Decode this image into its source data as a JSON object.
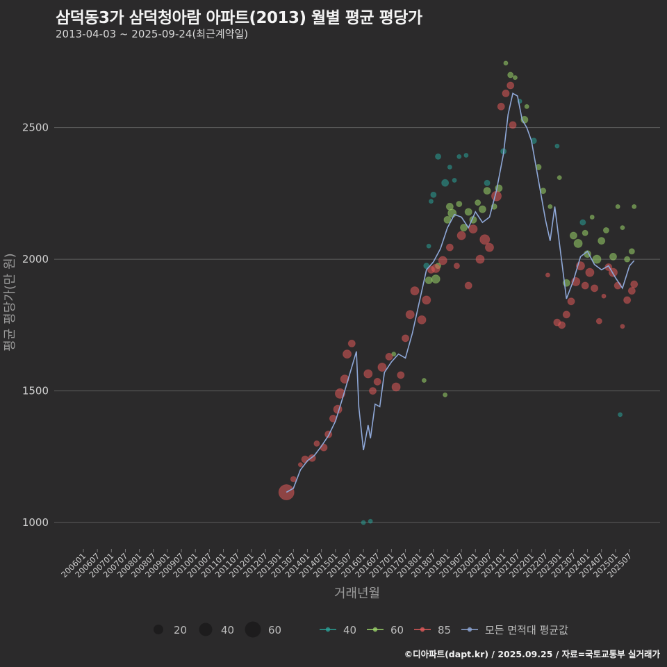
{
  "header": {
    "title": "삼덕동3가 삼덕청아람 아파트(2013) 월별 평균 평당가",
    "subtitle": "2013-04-03 ~ 2025-09-24(최근계약일)"
  },
  "footer": {
    "credit": "©디아파트(dapt.kr) / 2025.09.25 / 자료=국토교통부 실거래가"
  },
  "colors": {
    "background": "#2b2a2b",
    "grid": "#5d5d5d",
    "area_40": "#2aa198",
    "area_60": "#9bd36a",
    "area_85": "#e05a5a",
    "average_line": "#8fa8d8"
  },
  "chart_data": {
    "type": "scatter",
    "title": "삼덕동3가 삼덕청아람 아파트(2013) 월별 평균 평당가",
    "xlabel": "거래년월",
    "ylabel": "평균 평당가(만 원)",
    "ylim": [
      900,
      2800
    ],
    "y_ticks": [
      1000,
      1500,
      2000,
      2500
    ],
    "grid": true,
    "x_tick_labels": [
      "200601",
      "200607",
      "200701",
      "200707",
      "200801",
      "200807",
      "200901",
      "200907",
      "201001",
      "201007",
      "201101",
      "201107",
      "201201",
      "201207",
      "201301",
      "201307",
      "201401",
      "201407",
      "201501",
      "201507",
      "201601",
      "201607",
      "201701",
      "201707",
      "201801",
      "201807",
      "201901",
      "201907",
      "202001",
      "202007",
      "202101",
      "202107",
      "202201",
      "202207",
      "202301",
      "202307",
      "202401",
      "202407",
      "202501",
      "202507"
    ],
    "legend": {
      "position": "bottom",
      "size_items": [
        {
          "label": "20",
          "value": 20
        },
        {
          "label": "40",
          "value": 40
        },
        {
          "label": "60",
          "value": 60
        }
      ],
      "series_items": [
        {
          "label": "40",
          "color": "#2aa198"
        },
        {
          "label": "60",
          "color": "#9bd36a"
        },
        {
          "label": "85",
          "color": "#e05a5a"
        },
        {
          "label": "모든 면적대 평균값",
          "color": "#8fa8d8"
        }
      ]
    },
    "series": [
      {
        "name": "40",
        "color": "#2aa198",
        "points": [
          {
            "x": "2016-01",
            "y": 1000,
            "size": 6
          },
          {
            "x": "2016-04",
            "y": 1005,
            "size": 6
          },
          {
            "x": "2018-04",
            "y": 1975,
            "size": 8
          },
          {
            "x": "2018-05",
            "y": 2050,
            "size": 6
          },
          {
            "x": "2018-06",
            "y": 2220,
            "size": 6
          },
          {
            "x": "2018-07",
            "y": 2245,
            "size": 8
          },
          {
            "x": "2018-09",
            "y": 2390,
            "size": 8
          },
          {
            "x": "2018-12",
            "y": 2290,
            "size": 10
          },
          {
            "x": "2019-02",
            "y": 2350,
            "size": 6
          },
          {
            "x": "2019-04",
            "y": 2300,
            "size": 6
          },
          {
            "x": "2019-06",
            "y": 2390,
            "size": 6
          },
          {
            "x": "2019-09",
            "y": 2395,
            "size": 6
          },
          {
            "x": "2020-06",
            "y": 2290,
            "size": 8
          },
          {
            "x": "2021-01",
            "y": 2410,
            "size": 8
          },
          {
            "x": "2021-08",
            "y": 2600,
            "size": 6
          },
          {
            "x": "2022-02",
            "y": 2450,
            "size": 8
          },
          {
            "x": "2022-12",
            "y": 2430,
            "size": 6
          },
          {
            "x": "2023-11",
            "y": 2140,
            "size": 8
          },
          {
            "x": "2025-03",
            "y": 1410,
            "size": 6
          }
        ]
      },
      {
        "name": "60",
        "color": "#9bd36a",
        "points": [
          {
            "x": "2017-02",
            "y": 1640,
            "size": 6
          },
          {
            "x": "2018-03",
            "y": 1540,
            "size": 6
          },
          {
            "x": "2018-05",
            "y": 1920,
            "size": 10
          },
          {
            "x": "2018-08",
            "y": 1925,
            "size": 12
          },
          {
            "x": "2018-09",
            "y": 1975,
            "size": 8
          },
          {
            "x": "2018-12",
            "y": 1485,
            "size": 6
          },
          {
            "x": "2019-01",
            "y": 2150,
            "size": 10
          },
          {
            "x": "2019-02",
            "y": 2200,
            "size": 10
          },
          {
            "x": "2019-03",
            "y": 2175,
            "size": 12
          },
          {
            "x": "2019-06",
            "y": 2210,
            "size": 8
          },
          {
            "x": "2019-08",
            "y": 2120,
            "size": 10
          },
          {
            "x": "2019-10",
            "y": 2180,
            "size": 10
          },
          {
            "x": "2019-12",
            "y": 2150,
            "size": 10
          },
          {
            "x": "2020-02",
            "y": 2215,
            "size": 8
          },
          {
            "x": "2020-04",
            "y": 2190,
            "size": 10
          },
          {
            "x": "2020-06",
            "y": 2260,
            "size": 10
          },
          {
            "x": "2020-09",
            "y": 2200,
            "size": 8
          },
          {
            "x": "2020-11",
            "y": 2270,
            "size": 10
          },
          {
            "x": "2021-02",
            "y": 2745,
            "size": 6
          },
          {
            "x": "2021-04",
            "y": 2700,
            "size": 8
          },
          {
            "x": "2021-06",
            "y": 2690,
            "size": 6
          },
          {
            "x": "2021-10",
            "y": 2530,
            "size": 10
          },
          {
            "x": "2021-11",
            "y": 2580,
            "size": 6
          },
          {
            "x": "2022-04",
            "y": 2350,
            "size": 8
          },
          {
            "x": "2022-06",
            "y": 2260,
            "size": 8
          },
          {
            "x": "2022-09",
            "y": 2200,
            "size": 6
          },
          {
            "x": "2023-01",
            "y": 2310,
            "size": 6
          },
          {
            "x": "2023-04",
            "y": 1910,
            "size": 10
          },
          {
            "x": "2023-07",
            "y": 2090,
            "size": 10
          },
          {
            "x": "2023-09",
            "y": 2060,
            "size": 12
          },
          {
            "x": "2023-12",
            "y": 2100,
            "size": 8
          },
          {
            "x": "2024-01",
            "y": 2020,
            "size": 10
          },
          {
            "x": "2024-03",
            "y": 2160,
            "size": 6
          },
          {
            "x": "2024-05",
            "y": 2000,
            "size": 12
          },
          {
            "x": "2024-07",
            "y": 2070,
            "size": 10
          },
          {
            "x": "2024-09",
            "y": 2110,
            "size": 8
          },
          {
            "x": "2024-12",
            "y": 2010,
            "size": 10
          },
          {
            "x": "2025-02",
            "y": 2200,
            "size": 6
          },
          {
            "x": "2025-04",
            "y": 2120,
            "size": 6
          },
          {
            "x": "2025-06",
            "y": 2000,
            "size": 8
          },
          {
            "x": "2025-08",
            "y": 2030,
            "size": 8
          },
          {
            "x": "2025-09",
            "y": 2200,
            "size": 6
          }
        ]
      },
      {
        "name": "85",
        "color": "#e05a5a",
        "points": [
          {
            "x": "2013-04",
            "y": 1115,
            "size": 22
          },
          {
            "x": "2013-07",
            "y": 1165,
            "size": 8
          },
          {
            "x": "2013-10",
            "y": 1220,
            "size": 6
          },
          {
            "x": "2013-12",
            "y": 1240,
            "size": 10
          },
          {
            "x": "2014-03",
            "y": 1245,
            "size": 10
          },
          {
            "x": "2014-05",
            "y": 1300,
            "size": 8
          },
          {
            "x": "2014-08",
            "y": 1285,
            "size": 10
          },
          {
            "x": "2014-10",
            "y": 1335,
            "size": 10
          },
          {
            "x": "2014-12",
            "y": 1395,
            "size": 10
          },
          {
            "x": "2015-02",
            "y": 1430,
            "size": 12
          },
          {
            "x": "2015-03",
            "y": 1490,
            "size": 14
          },
          {
            "x": "2015-05",
            "y": 1545,
            "size": 12
          },
          {
            "x": "2015-06",
            "y": 1640,
            "size": 12
          },
          {
            "x": "2015-08",
            "y": 1680,
            "size": 10
          },
          {
            "x": "2016-03",
            "y": 1565,
            "size": 12
          },
          {
            "x": "2016-05",
            "y": 1500,
            "size": 10
          },
          {
            "x": "2016-07",
            "y": 1535,
            "size": 10
          },
          {
            "x": "2016-09",
            "y": 1590,
            "size": 12
          },
          {
            "x": "2016-12",
            "y": 1630,
            "size": 10
          },
          {
            "x": "2017-03",
            "y": 1515,
            "size": 12
          },
          {
            "x": "2017-05",
            "y": 1560,
            "size": 10
          },
          {
            "x": "2017-07",
            "y": 1700,
            "size": 10
          },
          {
            "x": "2017-09",
            "y": 1790,
            "size": 12
          },
          {
            "x": "2017-11",
            "y": 1880,
            "size": 12
          },
          {
            "x": "2018-02",
            "y": 1770,
            "size": 12
          },
          {
            "x": "2018-04",
            "y": 1845,
            "size": 12
          },
          {
            "x": "2018-06",
            "y": 1960,
            "size": 10
          },
          {
            "x": "2018-08",
            "y": 1965,
            "size": 12
          },
          {
            "x": "2018-11",
            "y": 1995,
            "size": 12
          },
          {
            "x": "2019-02",
            "y": 2045,
            "size": 10
          },
          {
            "x": "2019-05",
            "y": 1975,
            "size": 8
          },
          {
            "x": "2019-07",
            "y": 2090,
            "size": 12
          },
          {
            "x": "2019-10",
            "y": 1900,
            "size": 10
          },
          {
            "x": "2019-12",
            "y": 2115,
            "size": 12
          },
          {
            "x": "2020-03",
            "y": 2000,
            "size": 12
          },
          {
            "x": "2020-05",
            "y": 2075,
            "size": 14
          },
          {
            "x": "2020-07",
            "y": 2045,
            "size": 12
          },
          {
            "x": "2020-10",
            "y": 2240,
            "size": 14
          },
          {
            "x": "2020-12",
            "y": 2580,
            "size": 10
          },
          {
            "x": "2021-02",
            "y": 2630,
            "size": 10
          },
          {
            "x": "2021-04",
            "y": 2660,
            "size": 10
          },
          {
            "x": "2021-05",
            "y": 2510,
            "size": 10
          },
          {
            "x": "2022-08",
            "y": 1940,
            "size": 6
          },
          {
            "x": "2022-12",
            "y": 1760,
            "size": 10
          },
          {
            "x": "2023-02",
            "y": 1750,
            "size": 10
          },
          {
            "x": "2023-04",
            "y": 1790,
            "size": 10
          },
          {
            "x": "2023-06",
            "y": 1840,
            "size": 10
          },
          {
            "x": "2023-08",
            "y": 1915,
            "size": 12
          },
          {
            "x": "2023-10",
            "y": 1975,
            "size": 12
          },
          {
            "x": "2023-12",
            "y": 1900,
            "size": 10
          },
          {
            "x": "2024-02",
            "y": 1950,
            "size": 12
          },
          {
            "x": "2024-04",
            "y": 1890,
            "size": 10
          },
          {
            "x": "2024-06",
            "y": 1765,
            "size": 8
          },
          {
            "x": "2024-08",
            "y": 1860,
            "size": 6
          },
          {
            "x": "2024-10",
            "y": 1970,
            "size": 10
          },
          {
            "x": "2024-12",
            "y": 1950,
            "size": 12
          },
          {
            "x": "2025-02",
            "y": 1900,
            "size": 10
          },
          {
            "x": "2025-04",
            "y": 1745,
            "size": 6
          },
          {
            "x": "2025-06",
            "y": 1845,
            "size": 10
          },
          {
            "x": "2025-08",
            "y": 1880,
            "size": 10
          },
          {
            "x": "2025-09",
            "y": 1905,
            "size": 10
          }
        ]
      }
    ],
    "average_line": {
      "name": "모든 면적대 평균값",
      "color": "#8fa8d8",
      "points": [
        {
          "x": "2013-04",
          "y": 1115
        },
        {
          "x": "2013-07",
          "y": 1130
        },
        {
          "x": "2013-10",
          "y": 1200
        },
        {
          "x": "2014-01",
          "y": 1235
        },
        {
          "x": "2014-04",
          "y": 1255
        },
        {
          "x": "2014-07",
          "y": 1290
        },
        {
          "x": "2014-10",
          "y": 1330
        },
        {
          "x": "2015-01",
          "y": 1385
        },
        {
          "x": "2015-04",
          "y": 1470
        },
        {
          "x": "2015-07",
          "y": 1560
        },
        {
          "x": "2015-10",
          "y": 1650
        },
        {
          "x": "2015-11",
          "y": 1440
        },
        {
          "x": "2016-01",
          "y": 1275
        },
        {
          "x": "2016-03",
          "y": 1370
        },
        {
          "x": "2016-04",
          "y": 1320
        },
        {
          "x": "2016-06",
          "y": 1450
        },
        {
          "x": "2016-08",
          "y": 1440
        },
        {
          "x": "2016-10",
          "y": 1570
        },
        {
          "x": "2017-01",
          "y": 1610
        },
        {
          "x": "2017-04",
          "y": 1640
        },
        {
          "x": "2017-07",
          "y": 1625
        },
        {
          "x": "2017-10",
          "y": 1720
        },
        {
          "x": "2018-01",
          "y": 1840
        },
        {
          "x": "2018-04",
          "y": 1960
        },
        {
          "x": "2018-07",
          "y": 1990
        },
        {
          "x": "2018-10",
          "y": 2040
        },
        {
          "x": "2019-01",
          "y": 2120
        },
        {
          "x": "2019-04",
          "y": 2170
        },
        {
          "x": "2019-07",
          "y": 2160
        },
        {
          "x": "2019-10",
          "y": 2120
        },
        {
          "x": "2020-01",
          "y": 2180
        },
        {
          "x": "2020-04",
          "y": 2140
        },
        {
          "x": "2020-07",
          "y": 2160
        },
        {
          "x": "2020-10",
          "y": 2260
        },
        {
          "x": "2021-01",
          "y": 2400
        },
        {
          "x": "2021-03",
          "y": 2550
        },
        {
          "x": "2021-05",
          "y": 2630
        },
        {
          "x": "2021-07",
          "y": 2620
        },
        {
          "x": "2021-09",
          "y": 2530
        },
        {
          "x": "2021-11",
          "y": 2500
        },
        {
          "x": "2022-01",
          "y": 2450
        },
        {
          "x": "2022-04",
          "y": 2300
        },
        {
          "x": "2022-07",
          "y": 2150
        },
        {
          "x": "2022-09",
          "y": 2070
        },
        {
          "x": "2022-11",
          "y": 2200
        },
        {
          "x": "2023-01",
          "y": 2060
        },
        {
          "x": "2023-04",
          "y": 1850
        },
        {
          "x": "2023-07",
          "y": 1920
        },
        {
          "x": "2023-10",
          "y": 2010
        },
        {
          "x": "2024-01",
          "y": 2030
        },
        {
          "x": "2024-04",
          "y": 1980
        },
        {
          "x": "2024-07",
          "y": 1960
        },
        {
          "x": "2024-10",
          "y": 1975
        },
        {
          "x": "2025-01",
          "y": 1930
        },
        {
          "x": "2025-04",
          "y": 1890
        },
        {
          "x": "2025-07",
          "y": 1975
        },
        {
          "x": "2025-09",
          "y": 1995
        }
      ]
    }
  }
}
